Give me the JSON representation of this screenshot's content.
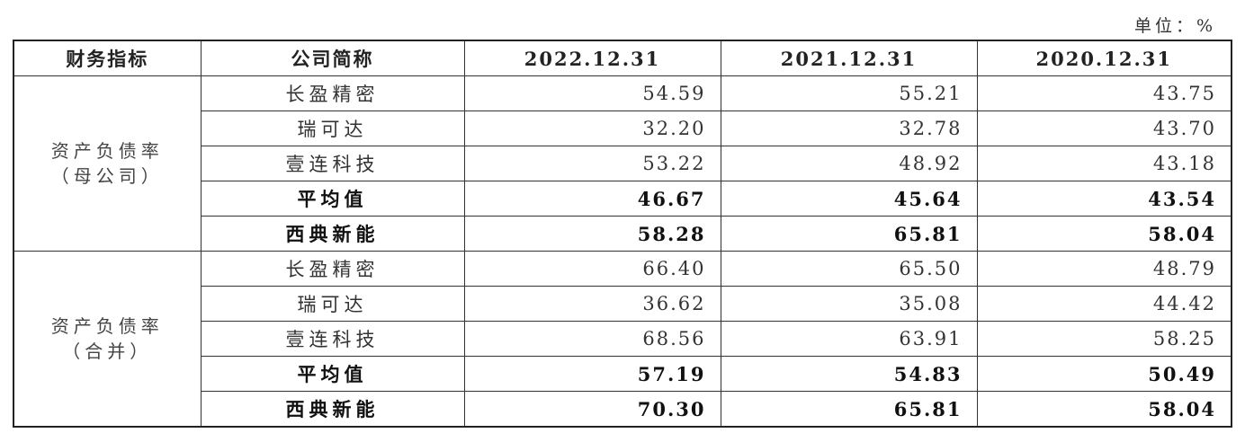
{
  "unit": "单位：%",
  "table": {
    "header": [
      "财务指标",
      "公司简称",
      "2022.12.31",
      "2021.12.31",
      "2020.12.31"
    ],
    "groups": [
      {
        "label": [
          "资产负债率",
          "（母公司）"
        ],
        "rows": [
          {
            "name": "长盈精密",
            "values": [
              "54.59",
              "55.21",
              "43.75"
            ],
            "emphasis": false
          },
          {
            "name": "瑞可达",
            "values": [
              "32.20",
              "32.78",
              "43.70"
            ],
            "emphasis": false
          },
          {
            "name": "壹连科技",
            "values": [
              "53.22",
              "48.92",
              "43.18"
            ],
            "emphasis": false
          },
          {
            "name": "平均值",
            "values": [
              "46.67",
              "45.64",
              "43.54"
            ],
            "emphasis": true
          },
          {
            "name": "西典新能",
            "values": [
              "58.28",
              "65.81",
              "58.04"
            ],
            "emphasis": true
          }
        ]
      },
      {
        "label": [
          "资产负债率",
          "（合并）"
        ],
        "rows": [
          {
            "name": "长盈精密",
            "values": [
              "66.40",
              "65.50",
              "48.79"
            ],
            "emphasis": false
          },
          {
            "name": "瑞可达",
            "values": [
              "36.62",
              "35.08",
              "44.42"
            ],
            "emphasis": false
          },
          {
            "name": "壹连科技",
            "values": [
              "68.56",
              "63.91",
              "58.25"
            ],
            "emphasis": false
          },
          {
            "name": "平均值",
            "values": [
              "57.19",
              "54.83",
              "50.49"
            ],
            "emphasis": true
          },
          {
            "name": "西典新能",
            "values": [
              "70.30",
              "65.81",
              "58.04"
            ],
            "emphasis": true
          }
        ]
      }
    ]
  }
}
